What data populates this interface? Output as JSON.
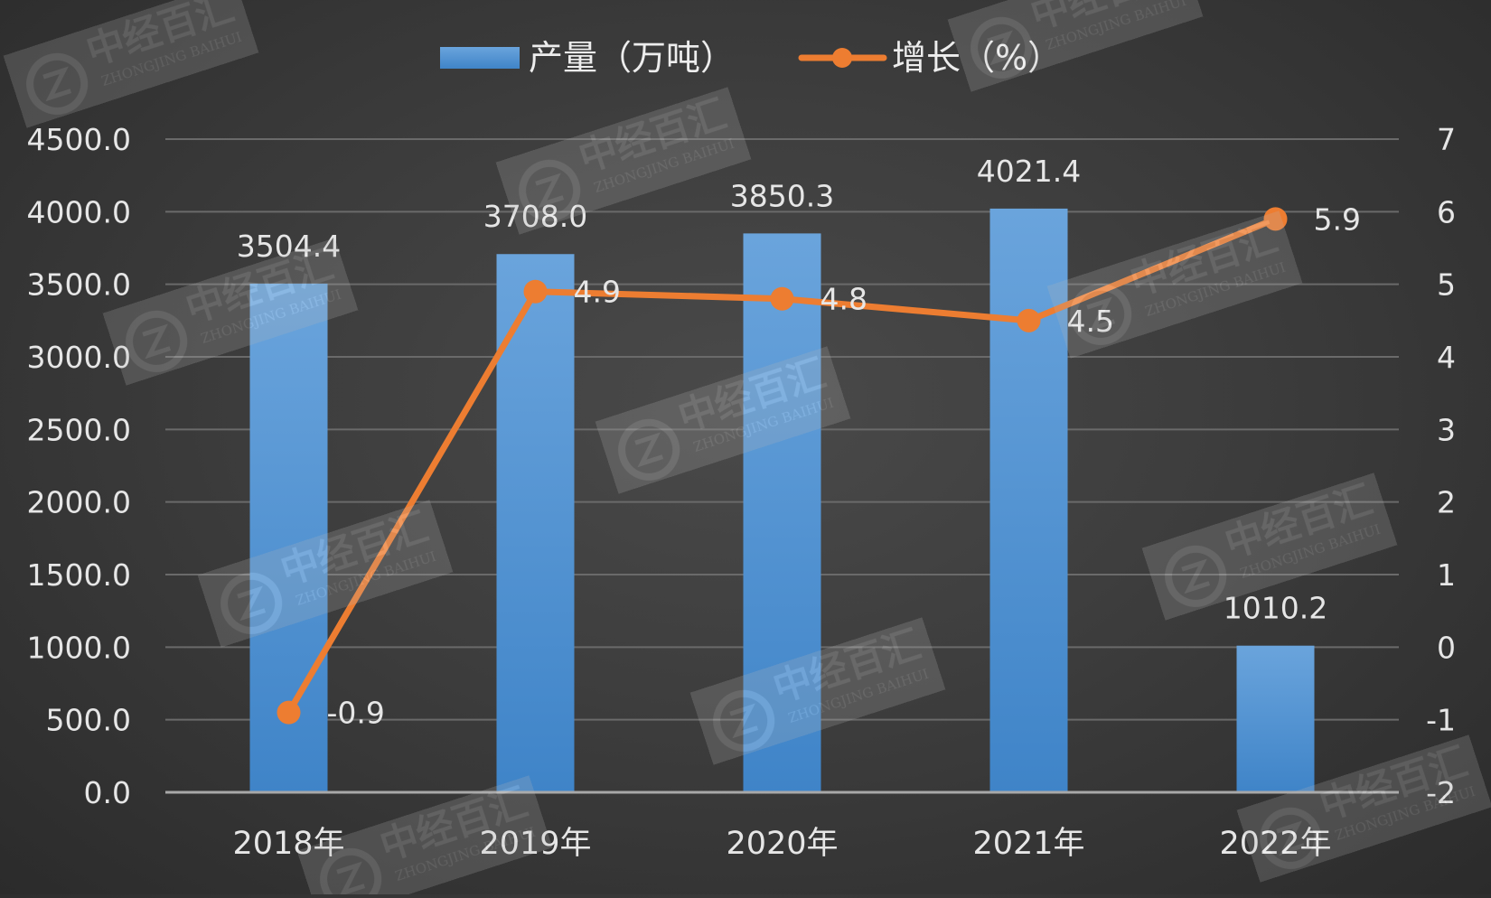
{
  "chart_data": {
    "type": "bar",
    "categories": [
      "2018年",
      "2019年",
      "2020年",
      "2021年",
      "2022年"
    ],
    "series": [
      {
        "name": "产量（万吨）",
        "type": "bar",
        "axis": "left",
        "values": [
          3504.4,
          3708.0,
          3850.3,
          4021.4,
          1010.2
        ],
        "labels": [
          "3504.4",
          "3708.0",
          "3850.3",
          "4021.4",
          "1010.2"
        ],
        "color": "#5b9bd5"
      },
      {
        "name": "增长（%）",
        "type": "line",
        "axis": "right",
        "values": [
          -0.9,
          4.9,
          4.8,
          4.5,
          5.9
        ],
        "labels": [
          "-0.9",
          "4.9",
          "4.8",
          "4.5",
          "5.9"
        ],
        "color": "#ed7d31"
      }
    ],
    "y_left": {
      "min": 0,
      "max": 4500,
      "ticks": [
        "0.0",
        "500.0",
        "1000.0",
        "1500.0",
        "2000.0",
        "2500.0",
        "3000.0",
        "3500.0",
        "4000.0",
        "4500.0"
      ]
    },
    "y_right": {
      "min": -2,
      "max": 7,
      "ticks": [
        "-2",
        "-1",
        "0",
        "1",
        "2",
        "3",
        "4",
        "5",
        "6",
        "7"
      ]
    },
    "grid": true,
    "legend_position": "top-center"
  },
  "watermark": {
    "cn": "中经百汇",
    "en": "ZHONGJING BAIHUI"
  }
}
